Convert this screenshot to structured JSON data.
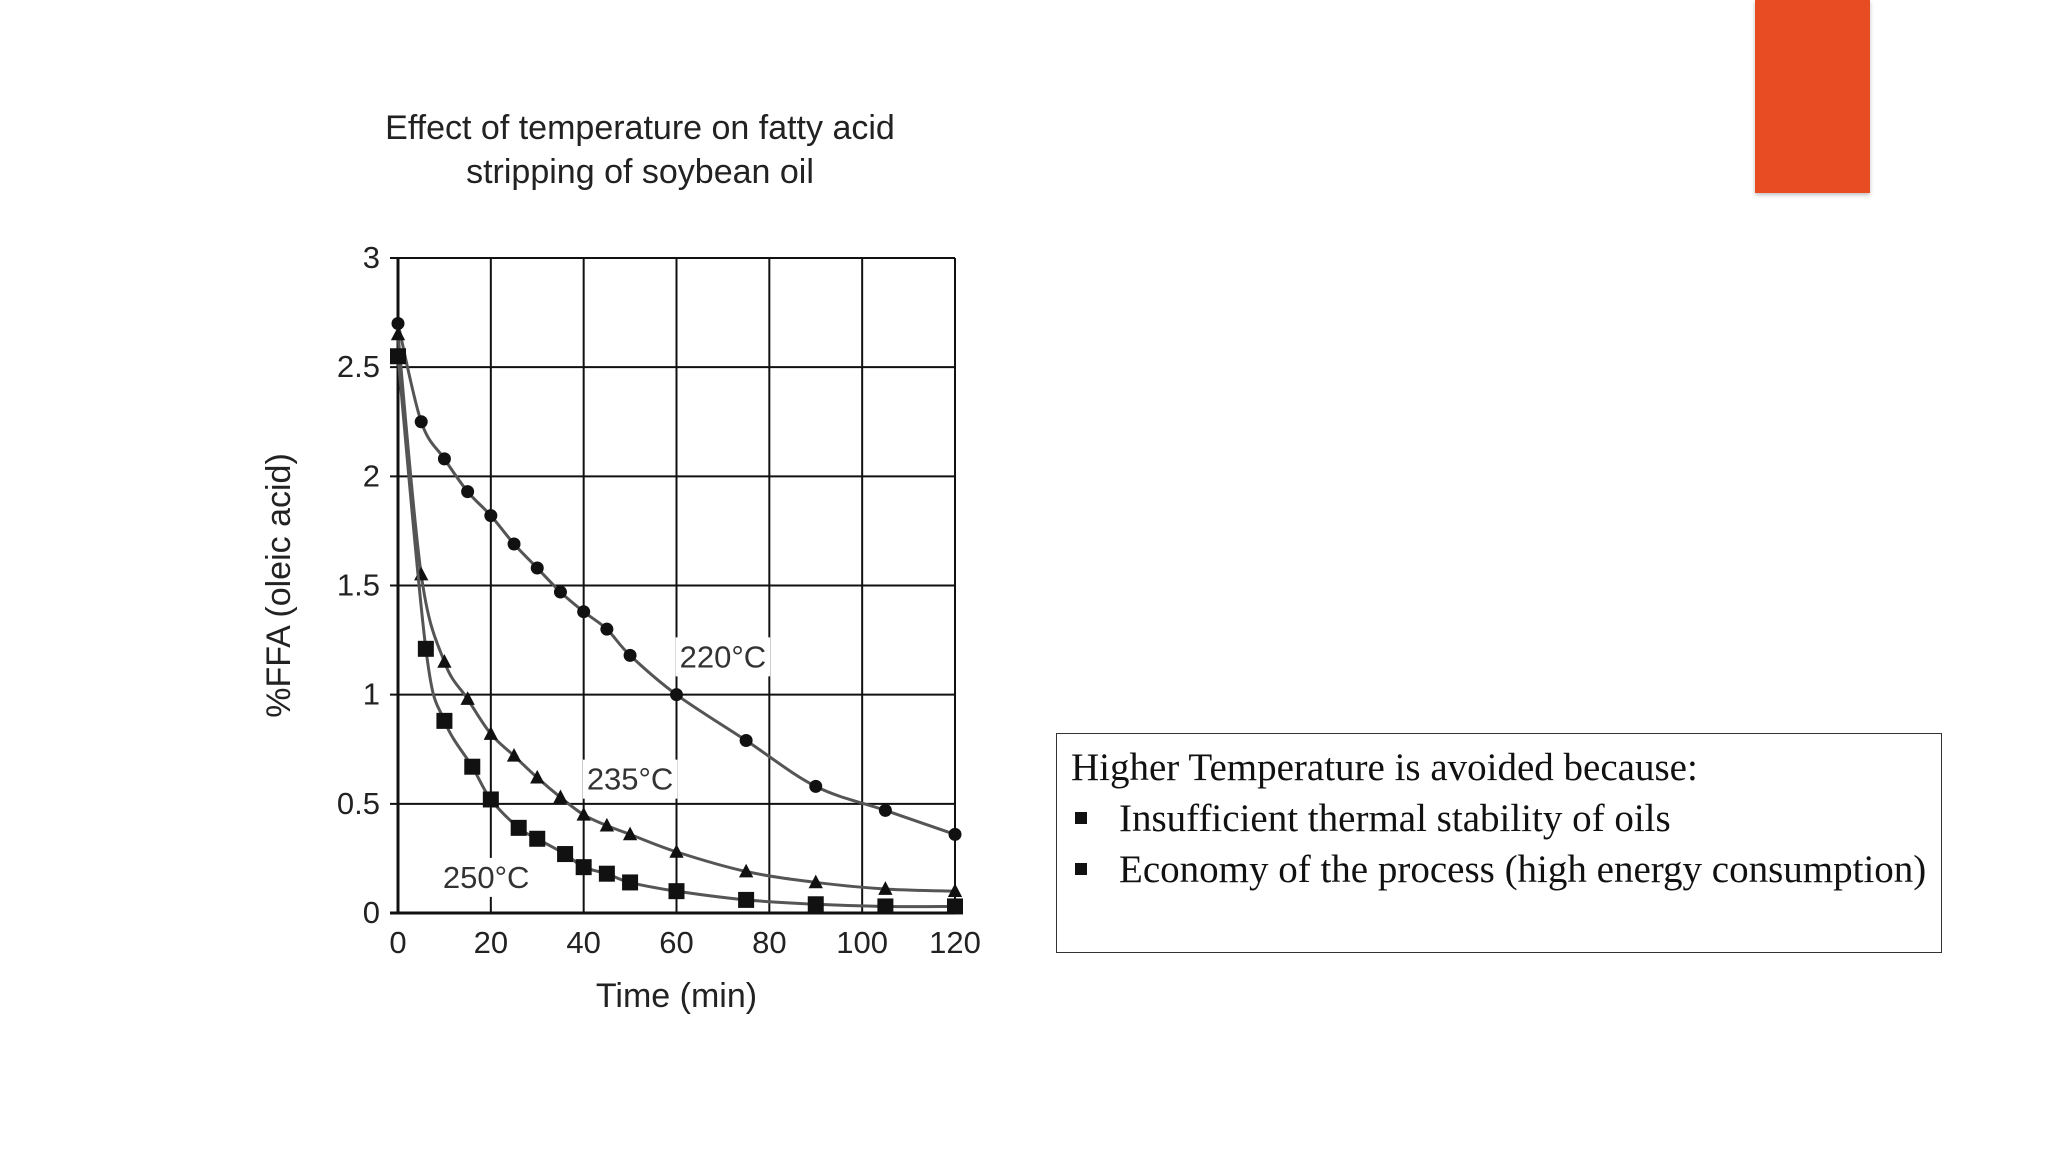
{
  "accent_color": "#e84c22",
  "chart_data": {
    "type": "line",
    "title": "Effect of temperature on fatty acid\nstripping of soybean oil",
    "xlabel": "Time (min)",
    "ylabel": "%FFA (oleic acid)",
    "xlim": [
      0,
      120
    ],
    "ylim": [
      0,
      3
    ],
    "xticks": [
      "0",
      "20",
      "40",
      "60",
      "80",
      "100",
      "120"
    ],
    "yticks": [
      "0",
      "0.5",
      "1",
      "1.5",
      "2",
      "2.5",
      "3"
    ],
    "grid": true,
    "series": [
      {
        "name": "220°C",
        "marker": "circle",
        "x": [
          0,
          5,
          10,
          15,
          20,
          25,
          30,
          35,
          40,
          45,
          50,
          60,
          75,
          90,
          105,
          120
        ],
        "y": [
          2.7,
          2.25,
          2.08,
          1.93,
          1.82,
          1.69,
          1.58,
          1.47,
          1.38,
          1.3,
          1.18,
          1.0,
          0.79,
          0.58,
          0.47,
          0.36
        ]
      },
      {
        "name": "235°C",
        "marker": "triangle",
        "x": [
          0,
          5,
          10,
          15,
          20,
          25,
          30,
          35,
          40,
          45,
          50,
          60,
          75,
          90,
          105,
          120
        ],
        "y": [
          2.65,
          1.55,
          1.15,
          0.98,
          0.82,
          0.72,
          0.62,
          0.53,
          0.45,
          0.4,
          0.36,
          0.28,
          0.19,
          0.14,
          0.11,
          0.1
        ]
      },
      {
        "name": "250°C",
        "marker": "square",
        "x": [
          0,
          6,
          10,
          16,
          20,
          26,
          30,
          36,
          40,
          45,
          50,
          60,
          75,
          90,
          105,
          120
        ],
        "y": [
          2.55,
          1.21,
          0.88,
          0.67,
          0.52,
          0.39,
          0.34,
          0.27,
          0.21,
          0.18,
          0.14,
          0.1,
          0.06,
          0.04,
          0.03,
          0.03
        ]
      }
    ],
    "annotations": [
      {
        "text": "220°C",
        "x": 70,
        "y": 1.18
      },
      {
        "text": "235°C",
        "x": 50,
        "y": 0.62
      },
      {
        "text": "250°C",
        "x": 19,
        "y": 0.17
      }
    ]
  },
  "note": {
    "heading": "Higher Temperature is avoided because:",
    "bullets": [
      "Insufficient thermal stability of oils",
      "Economy of the process (high energy consumption)"
    ]
  }
}
